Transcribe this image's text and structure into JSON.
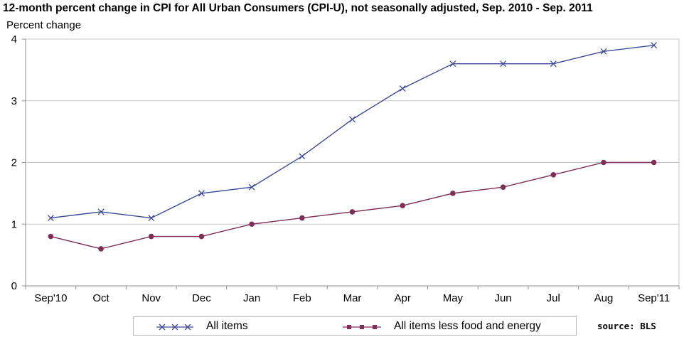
{
  "header": {
    "title": "12-month percent change in CPI for All Urban Consumers (CPI-U), not seasonally adjusted, Sep. 2010 - Sep. 2011",
    "y_axis_title": "Percent change"
  },
  "source_note": "source: BLS",
  "chart_data": {
    "type": "line",
    "title": "12-month percent change in CPI for All Urban Consumers (CPI-U), not seasonally adjusted, Sep. 2010 - Sep. 2011",
    "xlabel": "",
    "ylabel": "Percent change",
    "categories": [
      "Sep'10",
      "Oct",
      "Nov",
      "Dec",
      "Jan",
      "Feb",
      "Mar",
      "Apr",
      "May",
      "Jun",
      "Jul",
      "Aug",
      "Sep'11"
    ],
    "ylim": [
      0,
      4
    ],
    "yticks": [
      0,
      1,
      2,
      3,
      4
    ],
    "grid": true,
    "legend_position": "bottom",
    "series": [
      {
        "name": "All items",
        "marker": "x",
        "color": "#3c4a96",
        "values": [
          1.1,
          1.2,
          1.1,
          1.5,
          1.6,
          2.1,
          2.7,
          3.2,
          3.6,
          3.6,
          3.6,
          3.8,
          3.9
        ]
      },
      {
        "name": "All items less food and energy",
        "marker": "circle",
        "color": "#7d2f55",
        "values": [
          0.8,
          0.6,
          0.8,
          0.8,
          1.0,
          1.1,
          1.2,
          1.3,
          1.5,
          1.6,
          1.8,
          2.0,
          2.0
        ]
      }
    ]
  }
}
